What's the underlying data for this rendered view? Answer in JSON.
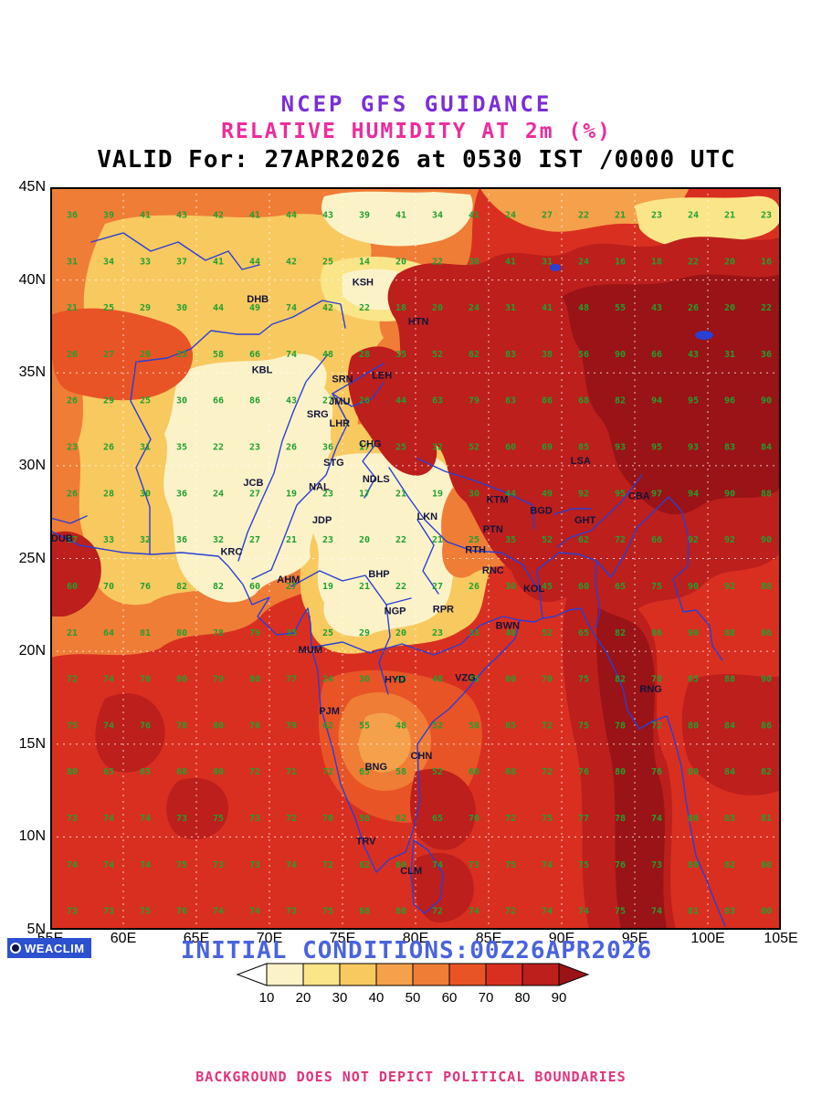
{
  "header": {
    "line1": "NCEP GFS GUIDANCE",
    "line2": "RELATIVE HUMIDITY AT 2m (%)",
    "line3": "VALID For: 27APR2026 at 0530 IST /0000 UTC"
  },
  "footer": {
    "logo_text": "WEACLIM",
    "initial_conditions": "INITIAL CONDITIONS:00Z26APR2026",
    "disclaimer": "BACKGROUND DOES NOT DEPICT POLITICAL BOUNDARIES"
  },
  "axes": {
    "lat_ticks": [
      {
        "label": "45N",
        "value": 45
      },
      {
        "label": "40N",
        "value": 40
      },
      {
        "label": "35N",
        "value": 35
      },
      {
        "label": "30N",
        "value": 30
      },
      {
        "label": "25N",
        "value": 25
      },
      {
        "label": "20N",
        "value": 20
      },
      {
        "label": "15N",
        "value": 15
      },
      {
        "label": "10N",
        "value": 10
      },
      {
        "label": "5N",
        "value": 5
      }
    ],
    "lon_ticks": [
      {
        "label": "55E",
        "value": 55
      },
      {
        "label": "60E",
        "value": 60
      },
      {
        "label": "65E",
        "value": 65
      },
      {
        "label": "70E",
        "value": 70
      },
      {
        "label": "75E",
        "value": 75
      },
      {
        "label": "80E",
        "value": 80
      },
      {
        "label": "85E",
        "value": 85
      },
      {
        "label": "90E",
        "value": 90
      },
      {
        "label": "95E",
        "value": 95
      },
      {
        "label": "100E",
        "value": 100
      },
      {
        "label": "105E",
        "value": 105
      }
    ]
  },
  "colorbar": {
    "labels": [
      10,
      20,
      30,
      40,
      50,
      60,
      70,
      80,
      90
    ],
    "below_color": "#ffffff",
    "above_color": "#9a1316",
    "segment_colors": [
      "#fcf2c8",
      "#fae588",
      "#f8c95f",
      "#f5a04b",
      "#ef7d36",
      "#e85426",
      "#d92f20",
      "#bc1f1c"
    ],
    "units": "%"
  },
  "chart_data": {
    "type": "heatmap",
    "title": "Relative Humidity at 2m (%)",
    "model": "NCEP GFS",
    "valid": "27APR2026 at 0530 IST /0000 UTC",
    "initial": "00Z26APR2026",
    "units": "%",
    "lon_range": [
      55,
      105
    ],
    "lat_range": [
      5,
      45
    ],
    "grid_lons": [
      56.5,
      59,
      61.5,
      64,
      66.5,
      69,
      71.5,
      74,
      76.5,
      79,
      81.5,
      84,
      86.5,
      89,
      91.5,
      94,
      96.5,
      99,
      101.5,
      104
    ],
    "grid_lats": [
      43.5,
      41,
      38.5,
      36,
      33.5,
      31,
      28.5,
      26,
      23.5,
      21,
      18.5,
      16,
      13.5,
      11,
      8.5,
      6
    ],
    "values": [
      [
        36,
        39,
        41,
        43,
        42,
        41,
        44,
        43,
        39,
        41,
        34,
        41,
        24,
        27,
        22,
        21,
        23,
        24,
        21,
        23
      ],
      [
        31,
        34,
        33,
        37,
        41,
        44,
        42,
        25,
        14,
        20,
        22,
        38,
        41,
        31,
        24,
        16,
        18,
        22,
        20,
        16
      ],
      [
        21,
        25,
        29,
        30,
        44,
        49,
        74,
        42,
        22,
        18,
        20,
        24,
        31,
        41,
        48,
        55,
        43,
        26,
        20,
        22
      ],
      [
        26,
        27,
        29,
        33,
        58,
        66,
        74,
        48,
        28,
        35,
        52,
        62,
        83,
        38,
        56,
        90,
        66,
        43,
        31,
        36
      ],
      [
        26,
        29,
        25,
        30,
        66,
        86,
        43,
        27,
        26,
        44,
        63,
        79,
        83,
        86,
        68,
        82,
        94,
        95,
        96,
        90
      ],
      [
        23,
        26,
        31,
        35,
        22,
        23,
        26,
        36,
        17,
        25,
        32,
        52,
        60,
        69,
        85,
        93,
        95,
        93,
        83,
        84
      ],
      [
        26,
        28,
        30,
        36,
        24,
        27,
        19,
        23,
        17,
        21,
        19,
        30,
        44,
        49,
        92,
        95,
        97,
        94,
        90,
        88
      ],
      [
        27,
        33,
        32,
        36,
        32,
        27,
        21,
        23,
        20,
        22,
        21,
        25,
        35,
        52,
        62,
        72,
        66,
        92,
        92,
        90
      ],
      [
        60,
        70,
        76,
        82,
        82,
        60,
        27,
        19,
        21,
        22,
        27,
        26,
        30,
        45,
        60,
        65,
        75,
        90,
        92,
        88
      ],
      [
        21,
        64,
        81,
        80,
        78,
        79,
        35,
        25,
        29,
        20,
        23,
        33,
        48,
        52,
        65,
        82,
        86,
        90,
        88,
        86
      ],
      [
        72,
        74,
        76,
        80,
        79,
        80,
        77,
        24,
        30,
        42,
        48,
        55,
        60,
        70,
        75,
        82,
        78,
        85,
        88,
        90
      ],
      [
        75,
        74,
        76,
        78,
        80,
        76,
        79,
        62,
        55,
        48,
        52,
        58,
        65,
        72,
        75,
        78,
        72,
        80,
        84,
        86
      ],
      [
        80,
        65,
        65,
        68,
        80,
        72,
        71,
        72,
        65,
        58,
        52,
        60,
        68,
        72,
        76,
        80,
        76,
        80,
        84,
        82
      ],
      [
        73,
        74,
        74,
        73,
        75,
        73,
        72,
        70,
        58,
        62,
        65,
        70,
        72,
        75,
        77,
        78,
        74,
        80,
        83,
        81
      ],
      [
        74,
        74,
        74,
        75,
        73,
        73,
        74,
        72,
        62,
        60,
        74,
        73,
        75,
        74,
        75,
        76,
        73,
        80,
        82,
        80
      ],
      [
        73,
        73,
        75,
        76,
        74,
        74,
        73,
        75,
        68,
        88,
        72,
        74,
        72,
        74,
        74,
        75,
        74,
        81,
        83,
        80
      ]
    ]
  },
  "cities": [
    {
      "code": "DHB",
      "lon": 69.2,
      "lat": 38.8
    },
    {
      "code": "KSH",
      "lon": 76.4,
      "lat": 39.7
    },
    {
      "code": "HTN",
      "lon": 80.2,
      "lat": 37.6
    },
    {
      "code": "KBL",
      "lon": 69.5,
      "lat": 35.0
    },
    {
      "code": "SRN",
      "lon": 75.0,
      "lat": 34.5
    },
    {
      "code": "LEH",
      "lon": 77.7,
      "lat": 34.7
    },
    {
      "code": "JMU",
      "lon": 74.8,
      "lat": 33.3
    },
    {
      "code": "SRG",
      "lon": 73.3,
      "lat": 32.6
    },
    {
      "code": "LHR",
      "lon": 74.8,
      "lat": 32.1
    },
    {
      "code": "CHG",
      "lon": 76.9,
      "lat": 31.0
    },
    {
      "code": "STG",
      "lon": 74.4,
      "lat": 30.0
    },
    {
      "code": "JCB",
      "lon": 68.9,
      "lat": 28.9
    },
    {
      "code": "NAL",
      "lon": 73.4,
      "lat": 28.7
    },
    {
      "code": "NDLS",
      "lon": 77.3,
      "lat": 29.1
    },
    {
      "code": "LKN",
      "lon": 80.8,
      "lat": 27.1
    },
    {
      "code": "KTM",
      "lon": 85.6,
      "lat": 28.0
    },
    {
      "code": "LSA",
      "lon": 91.3,
      "lat": 30.1
    },
    {
      "code": "CBA",
      "lon": 95.3,
      "lat": 28.2
    },
    {
      "code": "BGD",
      "lon": 88.6,
      "lat": 27.4
    },
    {
      "code": "GHT",
      "lon": 91.6,
      "lat": 26.9
    },
    {
      "code": "DUB",
      "lon": 55.8,
      "lat": 25.9
    },
    {
      "code": "KRC",
      "lon": 67.4,
      "lat": 25.2
    },
    {
      "code": "JDP",
      "lon": 73.6,
      "lat": 26.9
    },
    {
      "code": "PTN",
      "lon": 85.3,
      "lat": 26.4
    },
    {
      "code": "RTH",
      "lon": 84.1,
      "lat": 25.3
    },
    {
      "code": "AHM",
      "lon": 71.3,
      "lat": 23.7
    },
    {
      "code": "BHP",
      "lon": 77.5,
      "lat": 24.0
    },
    {
      "code": "RNC",
      "lon": 85.3,
      "lat": 24.2
    },
    {
      "code": "KOL",
      "lon": 88.1,
      "lat": 23.2
    },
    {
      "code": "NGP",
      "lon": 78.6,
      "lat": 22.0
    },
    {
      "code": "RPR",
      "lon": 81.9,
      "lat": 22.1
    },
    {
      "code": "BWN",
      "lon": 86.3,
      "lat": 21.2
    },
    {
      "code": "MUM",
      "lon": 72.8,
      "lat": 19.9
    },
    {
      "code": "HYD",
      "lon": 78.6,
      "lat": 18.3
    },
    {
      "code": "VZG",
      "lon": 83.4,
      "lat": 18.4
    },
    {
      "code": "RNG",
      "lon": 96.1,
      "lat": 17.8
    },
    {
      "code": "PJM",
      "lon": 74.1,
      "lat": 16.6
    },
    {
      "code": "CHN",
      "lon": 80.4,
      "lat": 14.2
    },
    {
      "code": "BNG",
      "lon": 77.3,
      "lat": 13.6
    },
    {
      "code": "TRV",
      "lon": 76.6,
      "lat": 9.6
    },
    {
      "code": "CLM",
      "lon": 79.7,
      "lat": 8.0
    }
  ]
}
